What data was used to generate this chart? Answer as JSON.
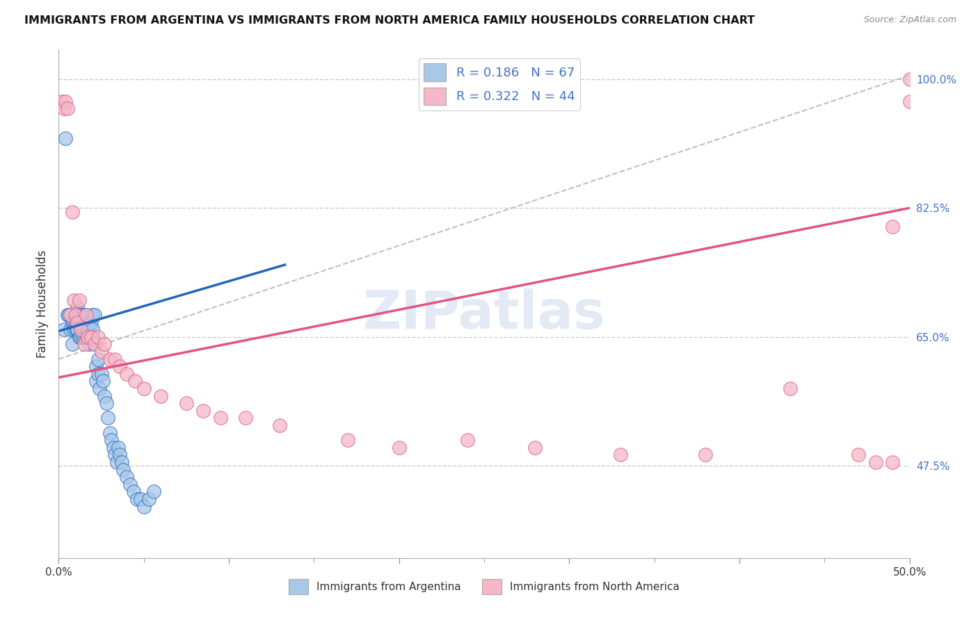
{
  "title": "IMMIGRANTS FROM ARGENTINA VS IMMIGRANTS FROM NORTH AMERICA FAMILY HOUSEHOLDS CORRELATION CHART",
  "source": "Source: ZipAtlas.com",
  "ylabel": "Family Households",
  "xmin": 0.0,
  "xmax": 0.5,
  "ymin": 0.35,
  "ymax": 1.04,
  "yticks": [
    0.475,
    0.65,
    0.825,
    1.0
  ],
  "ytick_labels": [
    "47.5%",
    "65.0%",
    "82.5%",
    "100.0%"
  ],
  "color_argentina": "#a8c8e8",
  "color_north_america": "#f4b8c8",
  "color_line_argentina": "#2266bb",
  "color_line_north_america": "#e05580",
  "color_dashed": "#aabbcc",
  "argentina_x": [
    0.003,
    0.004,
    0.005,
    0.006,
    0.007,
    0.008,
    0.008,
    0.009,
    0.009,
    0.01,
    0.01,
    0.011,
    0.011,
    0.011,
    0.012,
    0.012,
    0.013,
    0.013,
    0.013,
    0.014,
    0.014,
    0.014,
    0.015,
    0.015,
    0.015,
    0.016,
    0.016,
    0.016,
    0.017,
    0.017,
    0.018,
    0.018,
    0.018,
    0.019,
    0.019,
    0.02,
    0.02,
    0.02,
    0.021,
    0.021,
    0.022,
    0.022,
    0.023,
    0.023,
    0.024,
    0.025,
    0.026,
    0.027,
    0.028,
    0.029,
    0.03,
    0.031,
    0.032,
    0.033,
    0.034,
    0.035,
    0.036,
    0.037,
    0.038,
    0.04,
    0.042,
    0.044,
    0.046,
    0.048,
    0.05,
    0.053,
    0.056
  ],
  "argentina_y": [
    0.66,
    0.92,
    0.68,
    0.68,
    0.66,
    0.67,
    0.64,
    0.67,
    0.66,
    0.67,
    0.66,
    0.69,
    0.66,
    0.66,
    0.68,
    0.65,
    0.68,
    0.66,
    0.65,
    0.67,
    0.66,
    0.65,
    0.68,
    0.66,
    0.65,
    0.68,
    0.66,
    0.65,
    0.66,
    0.65,
    0.67,
    0.66,
    0.64,
    0.67,
    0.65,
    0.68,
    0.65,
    0.66,
    0.64,
    0.68,
    0.61,
    0.59,
    0.62,
    0.6,
    0.58,
    0.6,
    0.59,
    0.57,
    0.56,
    0.54,
    0.52,
    0.51,
    0.5,
    0.49,
    0.48,
    0.5,
    0.49,
    0.48,
    0.47,
    0.46,
    0.45,
    0.44,
    0.43,
    0.43,
    0.42,
    0.43,
    0.44
  ],
  "north_america_x": [
    0.002,
    0.003,
    0.004,
    0.005,
    0.007,
    0.008,
    0.009,
    0.01,
    0.011,
    0.012,
    0.013,
    0.015,
    0.016,
    0.017,
    0.019,
    0.021,
    0.023,
    0.025,
    0.027,
    0.03,
    0.033,
    0.036,
    0.04,
    0.045,
    0.05,
    0.06,
    0.075,
    0.085,
    0.095,
    0.11,
    0.13,
    0.17,
    0.2,
    0.24,
    0.28,
    0.33,
    0.38,
    0.43,
    0.47,
    0.48,
    0.49,
    0.49,
    0.5,
    0.5
  ],
  "north_america_y": [
    0.97,
    0.96,
    0.97,
    0.96,
    0.68,
    0.82,
    0.7,
    0.68,
    0.67,
    0.7,
    0.66,
    0.64,
    0.68,
    0.65,
    0.65,
    0.64,
    0.65,
    0.63,
    0.64,
    0.62,
    0.62,
    0.61,
    0.6,
    0.59,
    0.58,
    0.57,
    0.56,
    0.55,
    0.54,
    0.54,
    0.53,
    0.51,
    0.5,
    0.51,
    0.5,
    0.49,
    0.49,
    0.58,
    0.49,
    0.48,
    0.48,
    0.8,
    0.97,
    1.0
  ],
  "grid_color": "#cccccc",
  "bg_color": "#ffffff",
  "tick_label_color_right": "#4472c4",
  "legend_text_color": "#4472c4"
}
